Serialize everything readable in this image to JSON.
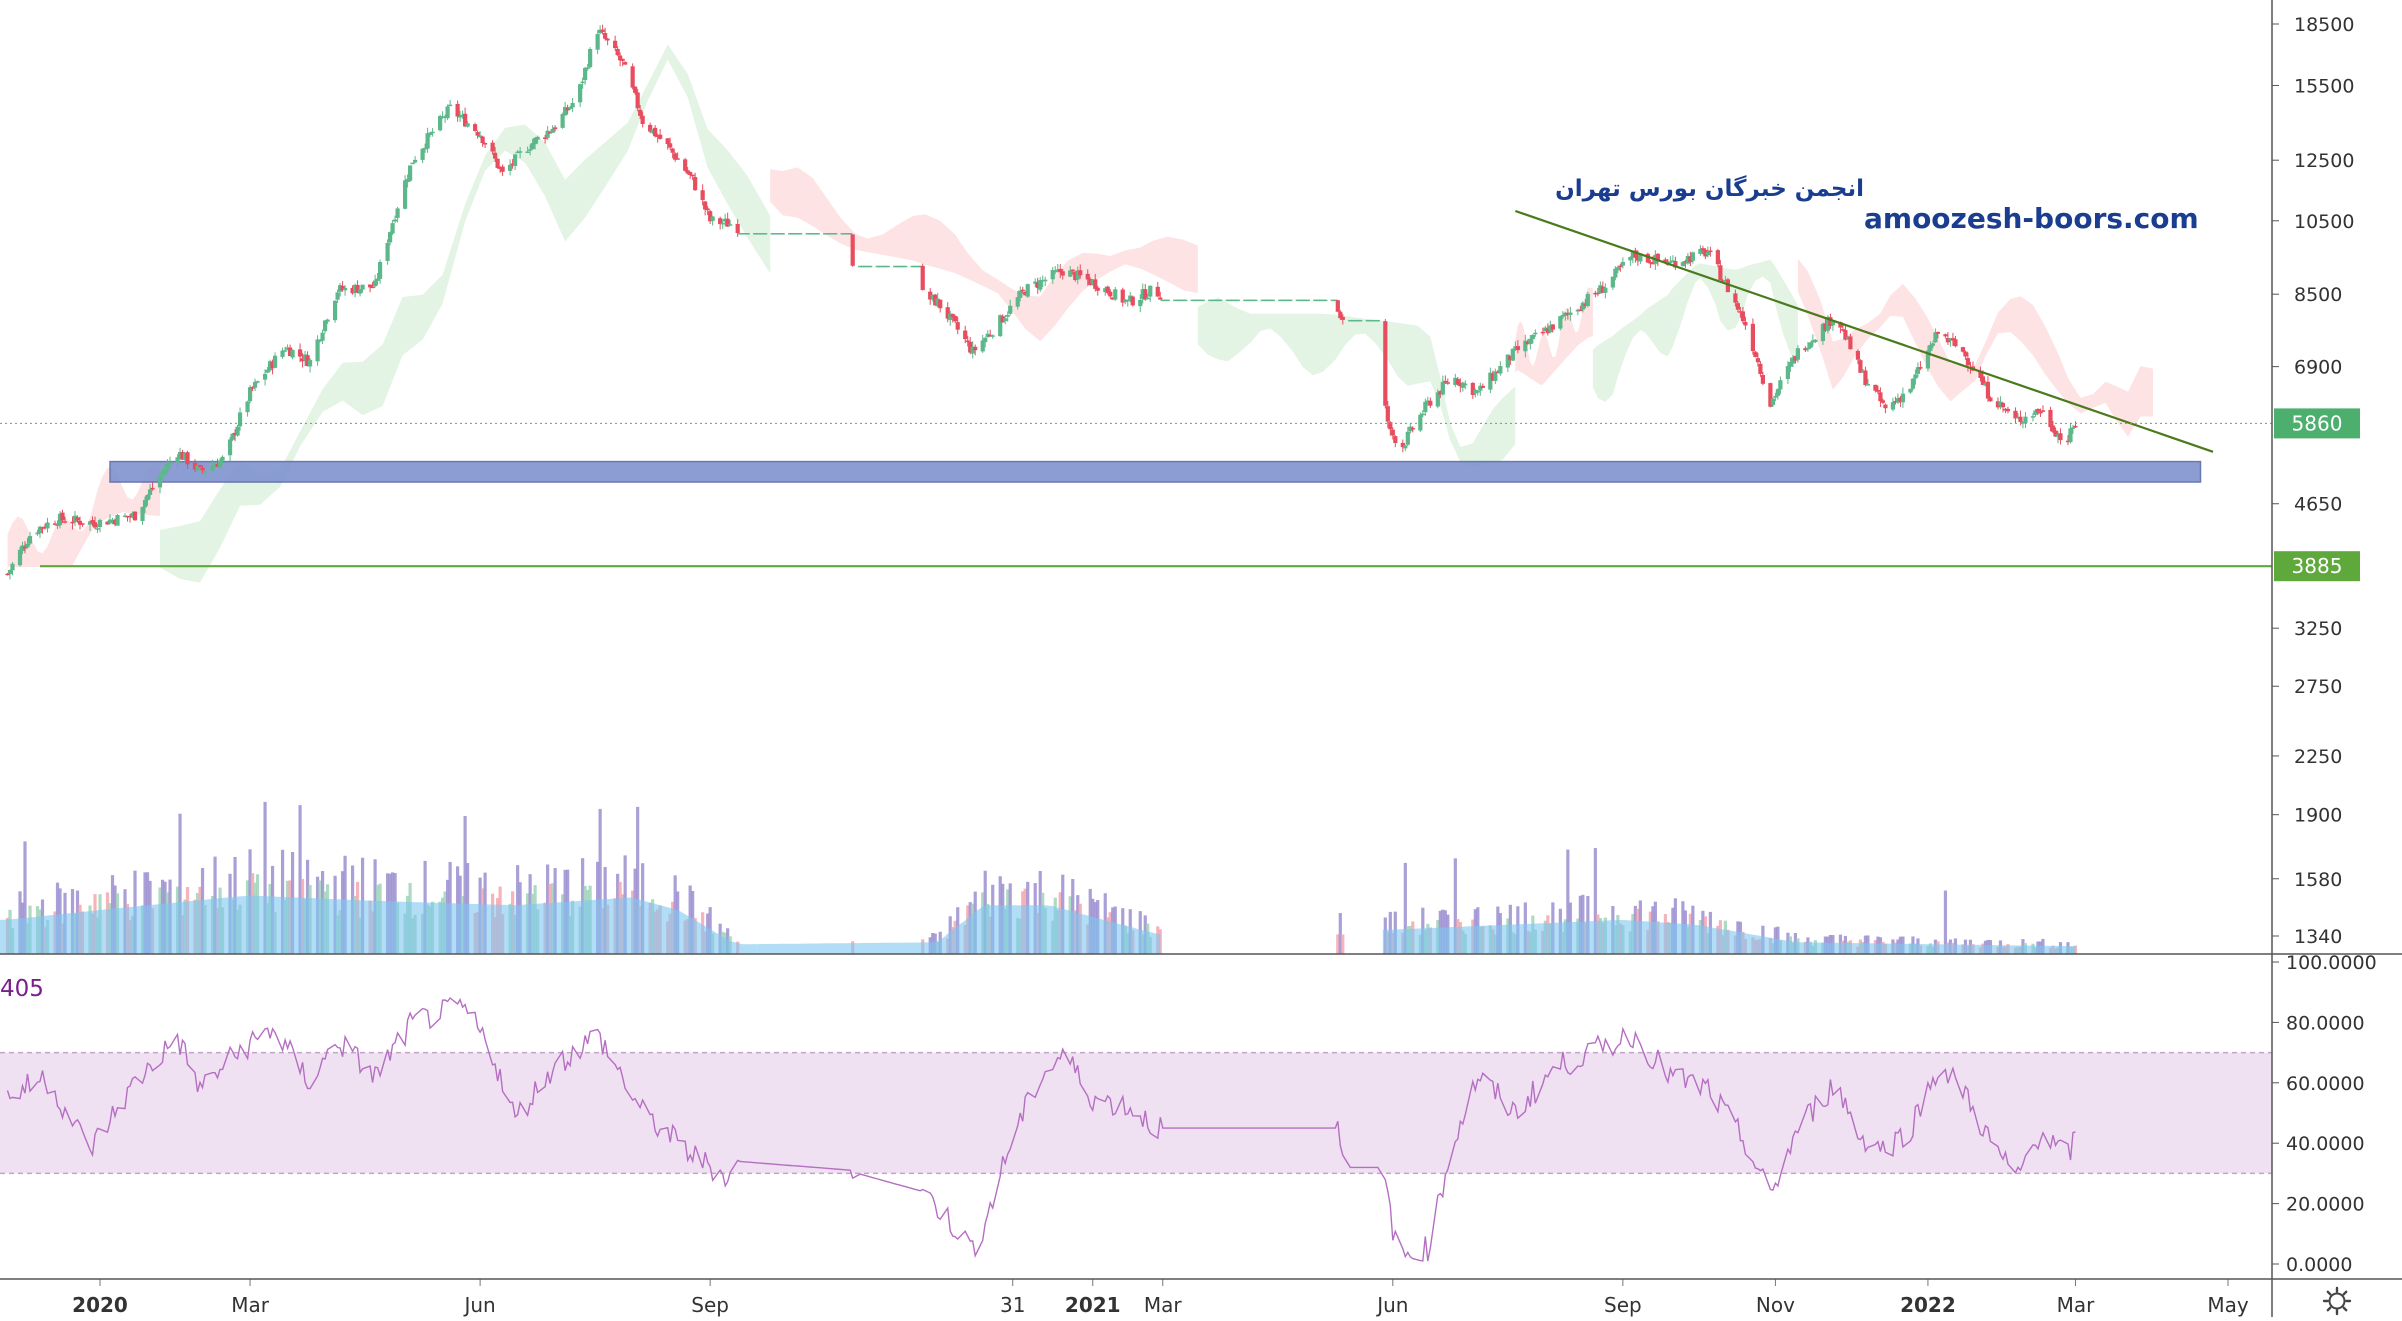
{
  "chart_data": [
    {
      "type": "candlestick",
      "panel": "price",
      "y_axis": {
        "scale": "log",
        "ylim": [
          1250,
          19500
        ],
        "ticks": [
          18500,
          15500,
          12500,
          10500,
          8500,
          6900,
          5860,
          4650,
          3885,
          3250,
          2750,
          2250,
          1900,
          1580,
          1340
        ],
        "tick_labels": [
          "18500",
          "15500",
          "12500",
          "10500",
          "8500",
          "6900",
          "5860",
          "4650",
          "3885",
          "3250",
          "2750",
          "2250",
          "1900",
          "1580",
          "1340"
        ]
      },
      "x_axis": {
        "ticks": [
          {
            "date": "2020-01-01",
            "label": "2020",
            "bold": true
          },
          {
            "date": "2020-03-01",
            "label": "Mar"
          },
          {
            "date": "2020-06-01",
            "label": "Jun"
          },
          {
            "date": "2020-09-01",
            "label": "Sep"
          },
          {
            "date": "2020-12-31",
            "label": "31"
          },
          {
            "date": "2021-02-01",
            "label": "2021",
            "bold": true
          },
          {
            "date": "2021-03-01",
            "label": "Mar"
          },
          {
            "date": "2021-06-01",
            "label": "Jun"
          },
          {
            "date": "2021-09-01",
            "label": "Sep"
          },
          {
            "date": "2021-11-01",
            "label": "Nov"
          },
          {
            "date": "2022-01-01",
            "label": "2022",
            "bold": true
          },
          {
            "date": "2022-03-01",
            "label": "Mar"
          },
          {
            "date": "2022-05-01",
            "label": "May"
          }
        ]
      },
      "price_path": [
        [
          "2019-11-25",
          3800
        ],
        [
          "2019-12-05",
          4300
        ],
        [
          "2019-12-15",
          4450
        ],
        [
          "2019-12-30",
          4400
        ],
        [
          "2020-01-15",
          4500
        ],
        [
          "2020-02-01",
          5400
        ],
        [
          "2020-02-10",
          5100
        ],
        [
          "2020-02-20",
          5300
        ],
        [
          "2020-03-01",
          6400
        ],
        [
          "2020-03-15",
          7300
        ],
        [
          "2020-03-25",
          7000
        ],
        [
          "2020-04-05",
          8600
        ],
        [
          "2020-04-20",
          8700
        ],
        [
          "2020-05-05",
          12500
        ],
        [
          "2020-05-20",
          14500
        ],
        [
          "2020-06-01",
          13500
        ],
        [
          "2020-06-10",
          12000
        ],
        [
          "2020-06-20",
          13000
        ],
        [
          "2020-07-01",
          13800
        ],
        [
          "2020-07-10",
          15000
        ],
        [
          "2020-07-18",
          18200
        ],
        [
          "2020-07-28",
          16500
        ],
        [
          "2020-08-05",
          14000
        ],
        [
          "2020-08-15",
          13000
        ],
        [
          "2020-08-25",
          11800
        ],
        [
          "2020-09-01",
          10500
        ],
        [
          "2020-09-10",
          10400
        ],
        [
          "2020-10-01",
          9500
        ],
        [
          "2020-10-25",
          9200
        ],
        [
          "2020-11-15",
          8800
        ],
        [
          "2020-12-01",
          8300
        ],
        [
          "2020-12-15",
          7200
        ],
        [
          "2020-12-25",
          7800
        ],
        [
          "2021-01-05",
          8600
        ],
        [
          "2021-01-20",
          9100
        ],
        [
          "2021-02-01",
          8800
        ],
        [
          "2021-02-15",
          8300
        ],
        [
          "2021-02-25",
          8600
        ],
        [
          "2021-03-10",
          8200
        ],
        [
          "2021-04-10",
          8200
        ],
        [
          "2021-05-20",
          7900
        ],
        [
          "2021-05-31",
          5700
        ],
        [
          "2021-06-05",
          5500
        ],
        [
          "2021-06-15",
          6200
        ],
        [
          "2021-06-25",
          6700
        ],
        [
          "2021-07-05",
          6400
        ],
        [
          "2021-07-20",
          7200
        ],
        [
          "2021-08-05",
          7800
        ],
        [
          "2021-08-25",
          8700
        ],
        [
          "2021-09-05",
          9500
        ],
        [
          "2021-09-20",
          9300
        ],
        [
          "2021-10-05",
          9600
        ],
        [
          "2021-10-20",
          7800
        ],
        [
          "2021-10-30",
          6200
        ],
        [
          "2021-11-10",
          7200
        ],
        [
          "2021-11-25",
          8000
        ],
        [
          "2021-12-05",
          6800
        ],
        [
          "2021-12-15",
          6100
        ],
        [
          "2021-12-25",
          6500
        ],
        [
          "2022-01-05",
          7600
        ],
        [
          "2022-01-15",
          7200
        ],
        [
          "2022-01-25",
          6400
        ],
        [
          "2022-02-05",
          5900
        ],
        [
          "2022-02-15",
          6100
        ],
        [
          "2022-02-25",
          5500
        ],
        [
          "2022-03-01",
          5860
        ]
      ],
      "gaps": [
        [
          "2020-09-12",
          "2020-10-28"
        ],
        [
          "2020-10-30",
          "2020-11-25"
        ],
        [
          "2021-02-28",
          "2021-05-10"
        ],
        [
          "2021-05-12",
          "2021-05-28"
        ]
      ],
      "ichimoku_cloud": [
        {
          "from": "2019-11-25",
          "to": "2020-01-25",
          "color": "red"
        },
        {
          "from": "2020-01-25",
          "to": "2020-09-25",
          "color": "green"
        },
        {
          "from": "2020-09-25",
          "to": "2021-03-15",
          "color": "red"
        },
        {
          "from": "2021-03-15",
          "to": "2021-07-20",
          "color": "green"
        },
        {
          "from": "2021-07-20",
          "to": "2021-08-20",
          "color": "red"
        },
        {
          "from": "2021-08-20",
          "to": "2021-11-10",
          "color": "green"
        },
        {
          "from": "2021-11-10",
          "to": "2022-04-01",
          "color": "red"
        }
      ],
      "last_price": 5860,
      "horizontal_levels": [
        {
          "value": 3885,
          "label": "3885",
          "color": "#5fa83c"
        }
      ],
      "support_zone": {
        "from": "2020-01-05",
        "to": "2022-04-20",
        "upper": 5250,
        "lower": 4950,
        "color": "#7f93cf"
      },
      "trendline": {
        "start": [
          "2021-07-20",
          10800
        ],
        "end": [
          "2022-04-25",
          5400
        ],
        "color": "#4a7a1c"
      },
      "watermark": {
        "line1": "انجمن خبرگان بورس تهران",
        "line2": "amoozesh-boors.com",
        "color": "#1a3d8f"
      },
      "colors": {
        "up": "#5cb88a",
        "down": "#e84d5f",
        "last_price_box": "#4caf6e",
        "level_box": "#5fa83c"
      }
    },
    {
      "type": "histogram",
      "panel": "volume",
      "series": [
        {
          "name": "volume_bars",
          "colors": [
            "#9fd4b9",
            "#f4a6b0",
            "#9b8fd0"
          ]
        },
        {
          "name": "volume_ma",
          "color": "#7ec6f0"
        }
      ],
      "profile": [
        [
          "2019-11-25",
          0.35
        ],
        [
          "2020-01-01",
          0.45
        ],
        [
          "2020-03-01",
          0.6
        ],
        [
          "2020-04-15",
          0.55
        ],
        [
          "2020-06-15",
          0.5
        ],
        [
          "2020-08-01",
          0.58
        ],
        [
          "2020-08-20",
          0.45
        ],
        [
          "2020-09-12",
          0.1
        ],
        [
          "2020-12-01",
          0.12
        ],
        [
          "2020-12-20",
          0.5
        ],
        [
          "2021-01-15",
          0.5
        ],
        [
          "2021-02-28",
          0.2
        ],
        [
          "2021-06-01",
          0.25
        ],
        [
          "2021-09-01",
          0.35
        ],
        [
          "2021-10-01",
          0.3
        ],
        [
          "2021-11-10",
          0.12
        ],
        [
          "2022-03-01",
          0.08
        ]
      ]
    },
    {
      "type": "line",
      "panel": "rsi",
      "label_fragment": "405",
      "band": {
        "upper": 70,
        "lower": 30,
        "color": "#efe0f2",
        "line_color": "#c4a3c8"
      },
      "y_axis": {
        "ylim": [
          0,
          100
        ],
        "ticks": [
          100,
          80,
          60,
          40,
          20,
          0
        ],
        "tick_labels": [
          "100.0000",
          "80.0000",
          "60.0000",
          "40.0000",
          "20.0000",
          "0.0000"
        ]
      },
      "series": [
        {
          "color": "#b56fc2",
          "points": [
            [
              "2019-11-25",
              55
            ],
            [
              "2019-12-10",
              62
            ],
            [
              "2019-12-28",
              38
            ],
            [
              "2020-01-15",
              60
            ],
            [
              "2020-02-01",
              75
            ],
            [
              "2020-02-10",
              58
            ],
            [
              "2020-02-25",
              70
            ],
            [
              "2020-03-10",
              78
            ],
            [
              "2020-03-25",
              60
            ],
            [
              "2020-04-05",
              74
            ],
            [
              "2020-04-20",
              62
            ],
            [
              "2020-05-05",
              80
            ],
            [
              "2020-05-25",
              85
            ],
            [
              "2020-06-05",
              72
            ],
            [
              "2020-06-15",
              48
            ],
            [
              "2020-06-30",
              65
            ],
            [
              "2020-07-18",
              76
            ],
            [
              "2020-08-05",
              50
            ],
            [
              "2020-08-25",
              36
            ],
            [
              "2020-09-10",
              28
            ],
            [
              "2020-09-12",
              34
            ],
            [
              "2020-10-28",
              31
            ],
            [
              "2020-10-30",
              30
            ],
            [
              "2020-11-25",
              24
            ],
            [
              "2020-12-05",
              15
            ],
            [
              "2020-12-15",
              5
            ],
            [
              "2020-12-20",
              14
            ],
            [
              "2020-12-31",
              42
            ],
            [
              "2021-01-10",
              60
            ],
            [
              "2021-01-20",
              70
            ],
            [
              "2021-02-01",
              55
            ],
            [
              "2021-02-15",
              52
            ],
            [
              "2021-02-28",
              45
            ],
            [
              "2021-05-10",
              45
            ],
            [
              "2021-05-12",
              32
            ],
            [
              "2021-05-28",
              32
            ],
            [
              "2021-06-03",
              2
            ],
            [
              "2021-06-15",
              5
            ],
            [
              "2021-06-25",
              40
            ],
            [
              "2021-07-05",
              62
            ],
            [
              "2021-07-20",
              50
            ],
            [
              "2021-08-05",
              65
            ],
            [
              "2021-08-25",
              72
            ],
            [
              "2021-09-05",
              76
            ],
            [
              "2021-09-20",
              62
            ],
            [
              "2021-10-05",
              58
            ],
            [
              "2021-10-20",
              40
            ],
            [
              "2021-10-30",
              22
            ],
            [
              "2021-11-10",
              45
            ],
            [
              "2021-11-25",
              60
            ],
            [
              "2021-12-05",
              42
            ],
            [
              "2021-12-15",
              38
            ],
            [
              "2021-12-25",
              45
            ],
            [
              "2022-01-05",
              65
            ],
            [
              "2022-01-15",
              58
            ],
            [
              "2022-01-25",
              42
            ],
            [
              "2022-02-05",
              28
            ],
            [
              "2022-02-15",
              44
            ],
            [
              "2022-02-25",
              35
            ],
            [
              "2022-03-01",
              41
            ]
          ]
        }
      ]
    }
  ],
  "icons": {
    "settings": "gear-icon"
  }
}
